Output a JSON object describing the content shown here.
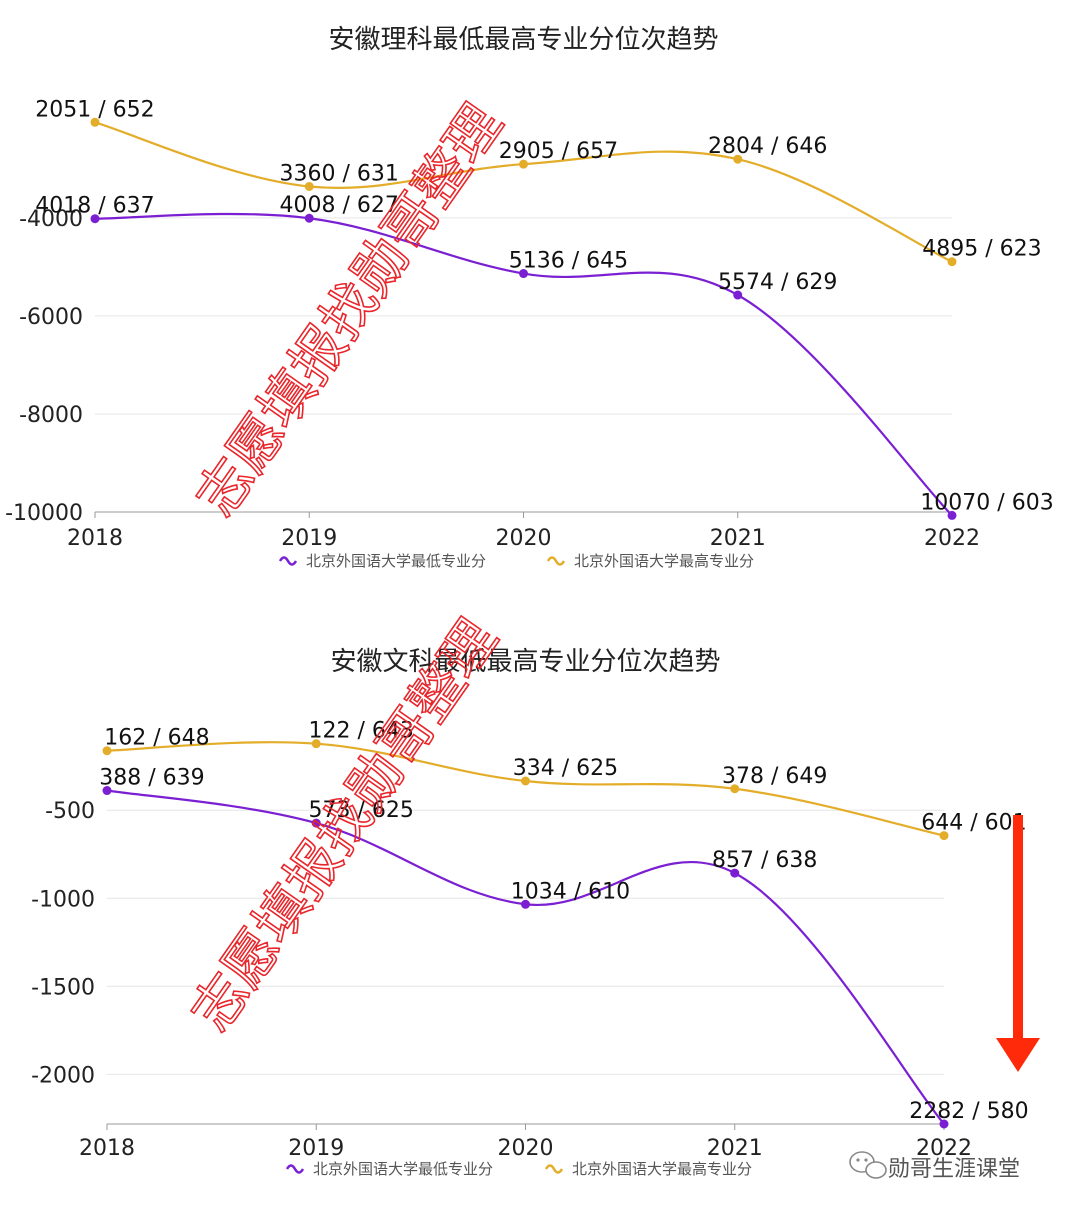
{
  "colors": {
    "min_series": "#7b1fd3",
    "max_series": "#e3ad2a",
    "arrow": "#ff2a0a",
    "watermark": "#e8262b",
    "grid": "#e6e6e6"
  },
  "watermark_text": "志愿填报找勋哥整理",
  "footer": {
    "text": "勋哥生涯课堂",
    "icon": "wechat-icon"
  },
  "chart_data": [
    {
      "type": "line",
      "title": "安徽理科最低最高专业分位次趋势",
      "categories": [
        "2018",
        "2019",
        "2020",
        "2021",
        "2022"
      ],
      "ylim": [
        -10000,
        -1800
      ],
      "yticks": [
        -4000,
        -6000,
        -8000,
        -10000
      ],
      "grid": true,
      "legend_position": "bottom",
      "series": [
        {
          "name": "北京外国语大学最低专业分",
          "key": "min",
          "values": [
            -4018,
            -4008,
            -5136,
            -5574,
            -10070
          ],
          "labels": [
            "4018 / 637",
            "4008 / 627",
            "5136 / 645",
            "5574 / 629",
            "10070 / 603"
          ]
        },
        {
          "name": "北京外国语大学最高专业分",
          "key": "max",
          "values": [
            -2051,
            -3360,
            -2905,
            -2804,
            -4895
          ],
          "labels": [
            "2051 / 652",
            "3360 / 631",
            "2905 / 657",
            "2804 / 646",
            "4895 / 623"
          ]
        }
      ]
    },
    {
      "type": "line",
      "title": "安徽文科最低最高专业分位次趋势",
      "categories": [
        "2018",
        "2019",
        "2020",
        "2021",
        "2022"
      ],
      "ylim": [
        -2282,
        -50
      ],
      "yticks": [
        -500,
        -1000,
        -1500,
        -2000
      ],
      "grid": true,
      "legend_position": "bottom",
      "series": [
        {
          "name": "北京外国语大学最低专业分",
          "key": "min",
          "values": [
            -388,
            -573,
            -1034,
            -857,
            -2282
          ],
          "labels": [
            "388 / 639",
            "573 / 625",
            "1034 / 610",
            "857 / 638",
            "2282 / 580"
          ]
        },
        {
          "name": "北京外国语大学最高专业分",
          "key": "max",
          "values": [
            -162,
            -122,
            -334,
            -378,
            -644
          ],
          "labels": [
            "162 / 648",
            "122 / 643",
            "334 / 625",
            "378 / 649",
            "644 / 601"
          ]
        }
      ]
    }
  ]
}
